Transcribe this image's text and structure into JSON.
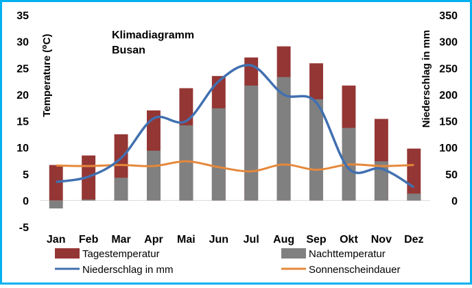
{
  "chart_data": {
    "type": "bar",
    "title": "Klimadiagramm",
    "subtitle": "Busan",
    "categories": [
      "Jan",
      "Feb",
      "Mar",
      "Apr",
      "Mai",
      "Jun",
      "Jul",
      "Aug",
      "Sep",
      "Okt",
      "Nov",
      "Dez"
    ],
    "y_left": {
      "label": "Temperature (⁰C)",
      "range": [
        -5,
        35
      ],
      "ticks": [
        "-5",
        "0",
        "5",
        "10",
        "15",
        "20",
        "25",
        "30",
        "35"
      ]
    },
    "y_right": {
      "label": "Niederschlag in mm",
      "range": [
        -50,
        350
      ],
      "ticks": [
        "0",
        "50",
        "100",
        "150",
        "200",
        "250",
        "300",
        "350"
      ]
    },
    "series": [
      {
        "name": "Tagestemperatur",
        "type": "bar",
        "axis": "left",
        "color": "#943634",
        "values": [
          6.7,
          8.5,
          12.5,
          17.0,
          21.2,
          23.5,
          27.0,
          29.1,
          25.9,
          21.7,
          15.4,
          9.8
        ]
      },
      {
        "name": "Nachttemperatur",
        "type": "bar",
        "axis": "left",
        "color": "#808080",
        "values": [
          -1.5,
          0.2,
          4.3,
          9.4,
          14.2,
          17.4,
          21.7,
          23.3,
          19.1,
          13.7,
          7.4,
          1.3
        ]
      },
      {
        "name": "Niederschlag in mm",
        "type": "line",
        "axis": "right",
        "color": "#4170b0",
        "values": [
          35,
          45,
          80,
          155,
          150,
          225,
          255,
          200,
          185,
          60,
          60,
          25
        ]
      },
      {
        "name": "Sonnenscheindauer",
        "type": "line",
        "axis": "left",
        "color": "#e5883a",
        "values": [
          6.6,
          6.5,
          6.7,
          6.5,
          7.4,
          6.3,
          5.5,
          6.8,
          5.8,
          6.8,
          6.5,
          6.7
        ]
      }
    ],
    "grid": false,
    "legend_position": "bottom",
    "background_color": "#ffffff",
    "border_color": "#00b0f0"
  }
}
